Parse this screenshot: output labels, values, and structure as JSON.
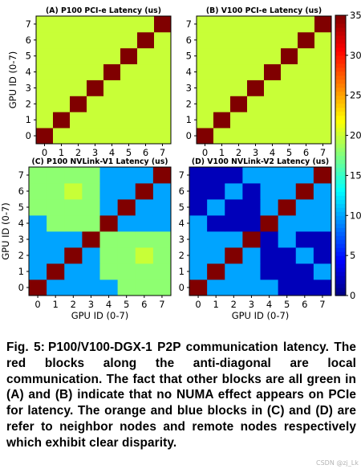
{
  "chart_data": [
    {
      "type": "heatmap",
      "title": "(A) P100 PCI-e Latency (us)",
      "xlabel": "",
      "ylabel": "GPU ID (0-7)",
      "x": [
        0,
        1,
        2,
        3,
        4,
        5,
        6,
        7
      ],
      "y": [
        0,
        1,
        2,
        3,
        4,
        5,
        6,
        7
      ],
      "xticks": [
        "0",
        "1",
        "2",
        "3",
        "4",
        "5",
        "6",
        "7"
      ],
      "yticks": [
        "0",
        "1",
        "2",
        "3",
        "4",
        "5",
        "6",
        "7"
      ],
      "values": [
        [
          35,
          20,
          20,
          20,
          20,
          20,
          20,
          20
        ],
        [
          20,
          35,
          20,
          20,
          20,
          20,
          20,
          20
        ],
        [
          20,
          20,
          35,
          20,
          20,
          20,
          20,
          20
        ],
        [
          20,
          20,
          20,
          35,
          20,
          20,
          20,
          20
        ],
        [
          20,
          20,
          20,
          20,
          35,
          20,
          20,
          20
        ],
        [
          20,
          20,
          20,
          20,
          20,
          35,
          20,
          20
        ],
        [
          20,
          20,
          20,
          20,
          20,
          20,
          35,
          20
        ],
        [
          20,
          20,
          20,
          20,
          20,
          20,
          20,
          35
        ]
      ]
    },
    {
      "type": "heatmap",
      "title": "(B) V100 PCI-e Latency (us)",
      "xlabel": "",
      "ylabel": "",
      "x": [
        0,
        1,
        2,
        3,
        4,
        5,
        6,
        7
      ],
      "y": [
        0,
        1,
        2,
        3,
        4,
        5,
        6,
        7
      ],
      "xticks": [
        "0",
        "1",
        "2",
        "3",
        "4",
        "5",
        "6",
        "7"
      ],
      "yticks": [
        "0",
        "1",
        "2",
        "3",
        "4",
        "5",
        "6",
        "7"
      ],
      "values": [
        [
          35,
          20,
          20,
          20,
          20,
          20,
          20,
          20
        ],
        [
          20,
          35,
          20,
          20,
          20,
          20,
          20,
          20
        ],
        [
          20,
          20,
          35,
          20,
          20,
          20,
          20,
          20
        ],
        [
          20,
          20,
          20,
          35,
          20,
          20,
          20,
          20
        ],
        [
          20,
          20,
          20,
          20,
          35,
          20,
          20,
          20
        ],
        [
          20,
          20,
          20,
          20,
          20,
          35,
          20,
          20
        ],
        [
          20,
          20,
          20,
          20,
          20,
          20,
          35,
          20
        ],
        [
          20,
          20,
          20,
          20,
          20,
          20,
          20,
          35
        ]
      ]
    },
    {
      "type": "heatmap",
      "title": "(C) P100 NVLink-V1 Latency (us)",
      "xlabel": "GPU ID (0-7)",
      "ylabel": "GPU ID (0-7)",
      "x": [
        0,
        1,
        2,
        3,
        4,
        5,
        6,
        7
      ],
      "y": [
        0,
        1,
        2,
        3,
        4,
        5,
        6,
        7
      ],
      "xticks": [
        "0",
        "1",
        "2",
        "3",
        "4",
        "5",
        "6",
        "7"
      ],
      "yticks": [
        "0",
        "1",
        "2",
        "3",
        "4",
        "5",
        "6",
        "7"
      ],
      "values": [
        [
          35,
          10,
          10,
          10,
          10,
          18,
          18,
          18
        ],
        [
          10,
          35,
          10,
          10,
          18,
          18,
          18,
          18
        ],
        [
          10,
          10,
          35,
          10,
          18,
          18,
          20,
          18
        ],
        [
          10,
          10,
          10,
          35,
          18,
          18,
          18,
          18
        ],
        [
          10,
          18,
          18,
          18,
          35,
          10,
          10,
          10
        ],
        [
          18,
          18,
          18,
          18,
          10,
          35,
          10,
          10
        ],
        [
          18,
          18,
          20,
          18,
          10,
          10,
          35,
          10
        ],
        [
          18,
          18,
          18,
          18,
          10,
          10,
          10,
          35
        ]
      ]
    },
    {
      "type": "heatmap",
      "title": "(D) V100 NVLink-V2 Latency (us)",
      "xlabel": "GPU ID (0-7)",
      "ylabel": "",
      "x": [
        0,
        1,
        2,
        3,
        4,
        5,
        6,
        7
      ],
      "y": [
        0,
        1,
        2,
        3,
        4,
        5,
        6,
        7
      ],
      "xticks": [
        "0",
        "1",
        "2",
        "3",
        "4",
        "5",
        "6",
        "7"
      ],
      "yticks": [
        "0",
        "1",
        "2",
        "3",
        "4",
        "5",
        "6",
        "7"
      ],
      "values": [
        [
          35,
          10,
          10,
          10,
          10,
          2,
          2,
          2
        ],
        [
          10,
          35,
          10,
          10,
          2,
          2,
          2,
          10
        ],
        [
          10,
          10,
          35,
          10,
          2,
          2,
          10,
          2
        ],
        [
          10,
          10,
          10,
          35,
          2,
          10,
          2,
          2
        ],
        [
          10,
          2,
          2,
          2,
          35,
          10,
          10,
          10
        ],
        [
          2,
          10,
          2,
          2,
          10,
          35,
          10,
          10
        ],
        [
          2,
          2,
          10,
          2,
          10,
          10,
          35,
          10
        ],
        [
          2,
          2,
          2,
          10,
          10,
          10,
          10,
          35
        ]
      ]
    }
  ],
  "colorbar": {
    "min": 0,
    "max": 35,
    "ticks": [
      0,
      5,
      10,
      15,
      20,
      25,
      30,
      35
    ],
    "tick_labels": [
      "0",
      "5",
      "10",
      "15",
      "20",
      "25",
      "30",
      "35"
    ],
    "colormap": "jet"
  },
  "caption": {
    "prefix": "Fig. 5:",
    "text": "P100/V100-DGX-1 P2P communication latency. The red blocks along the anti-diagonal are local communication. The fact that other blocks are all green in (A) and (B) indicate that no NUMA effect appears on PCIe for latency. The orange and blue blocks in (C) and (D) are refer to neighbor nodes and remote nodes respectively which exhibit clear disparity."
  },
  "watermark": "CSDN @zj_Lk"
}
